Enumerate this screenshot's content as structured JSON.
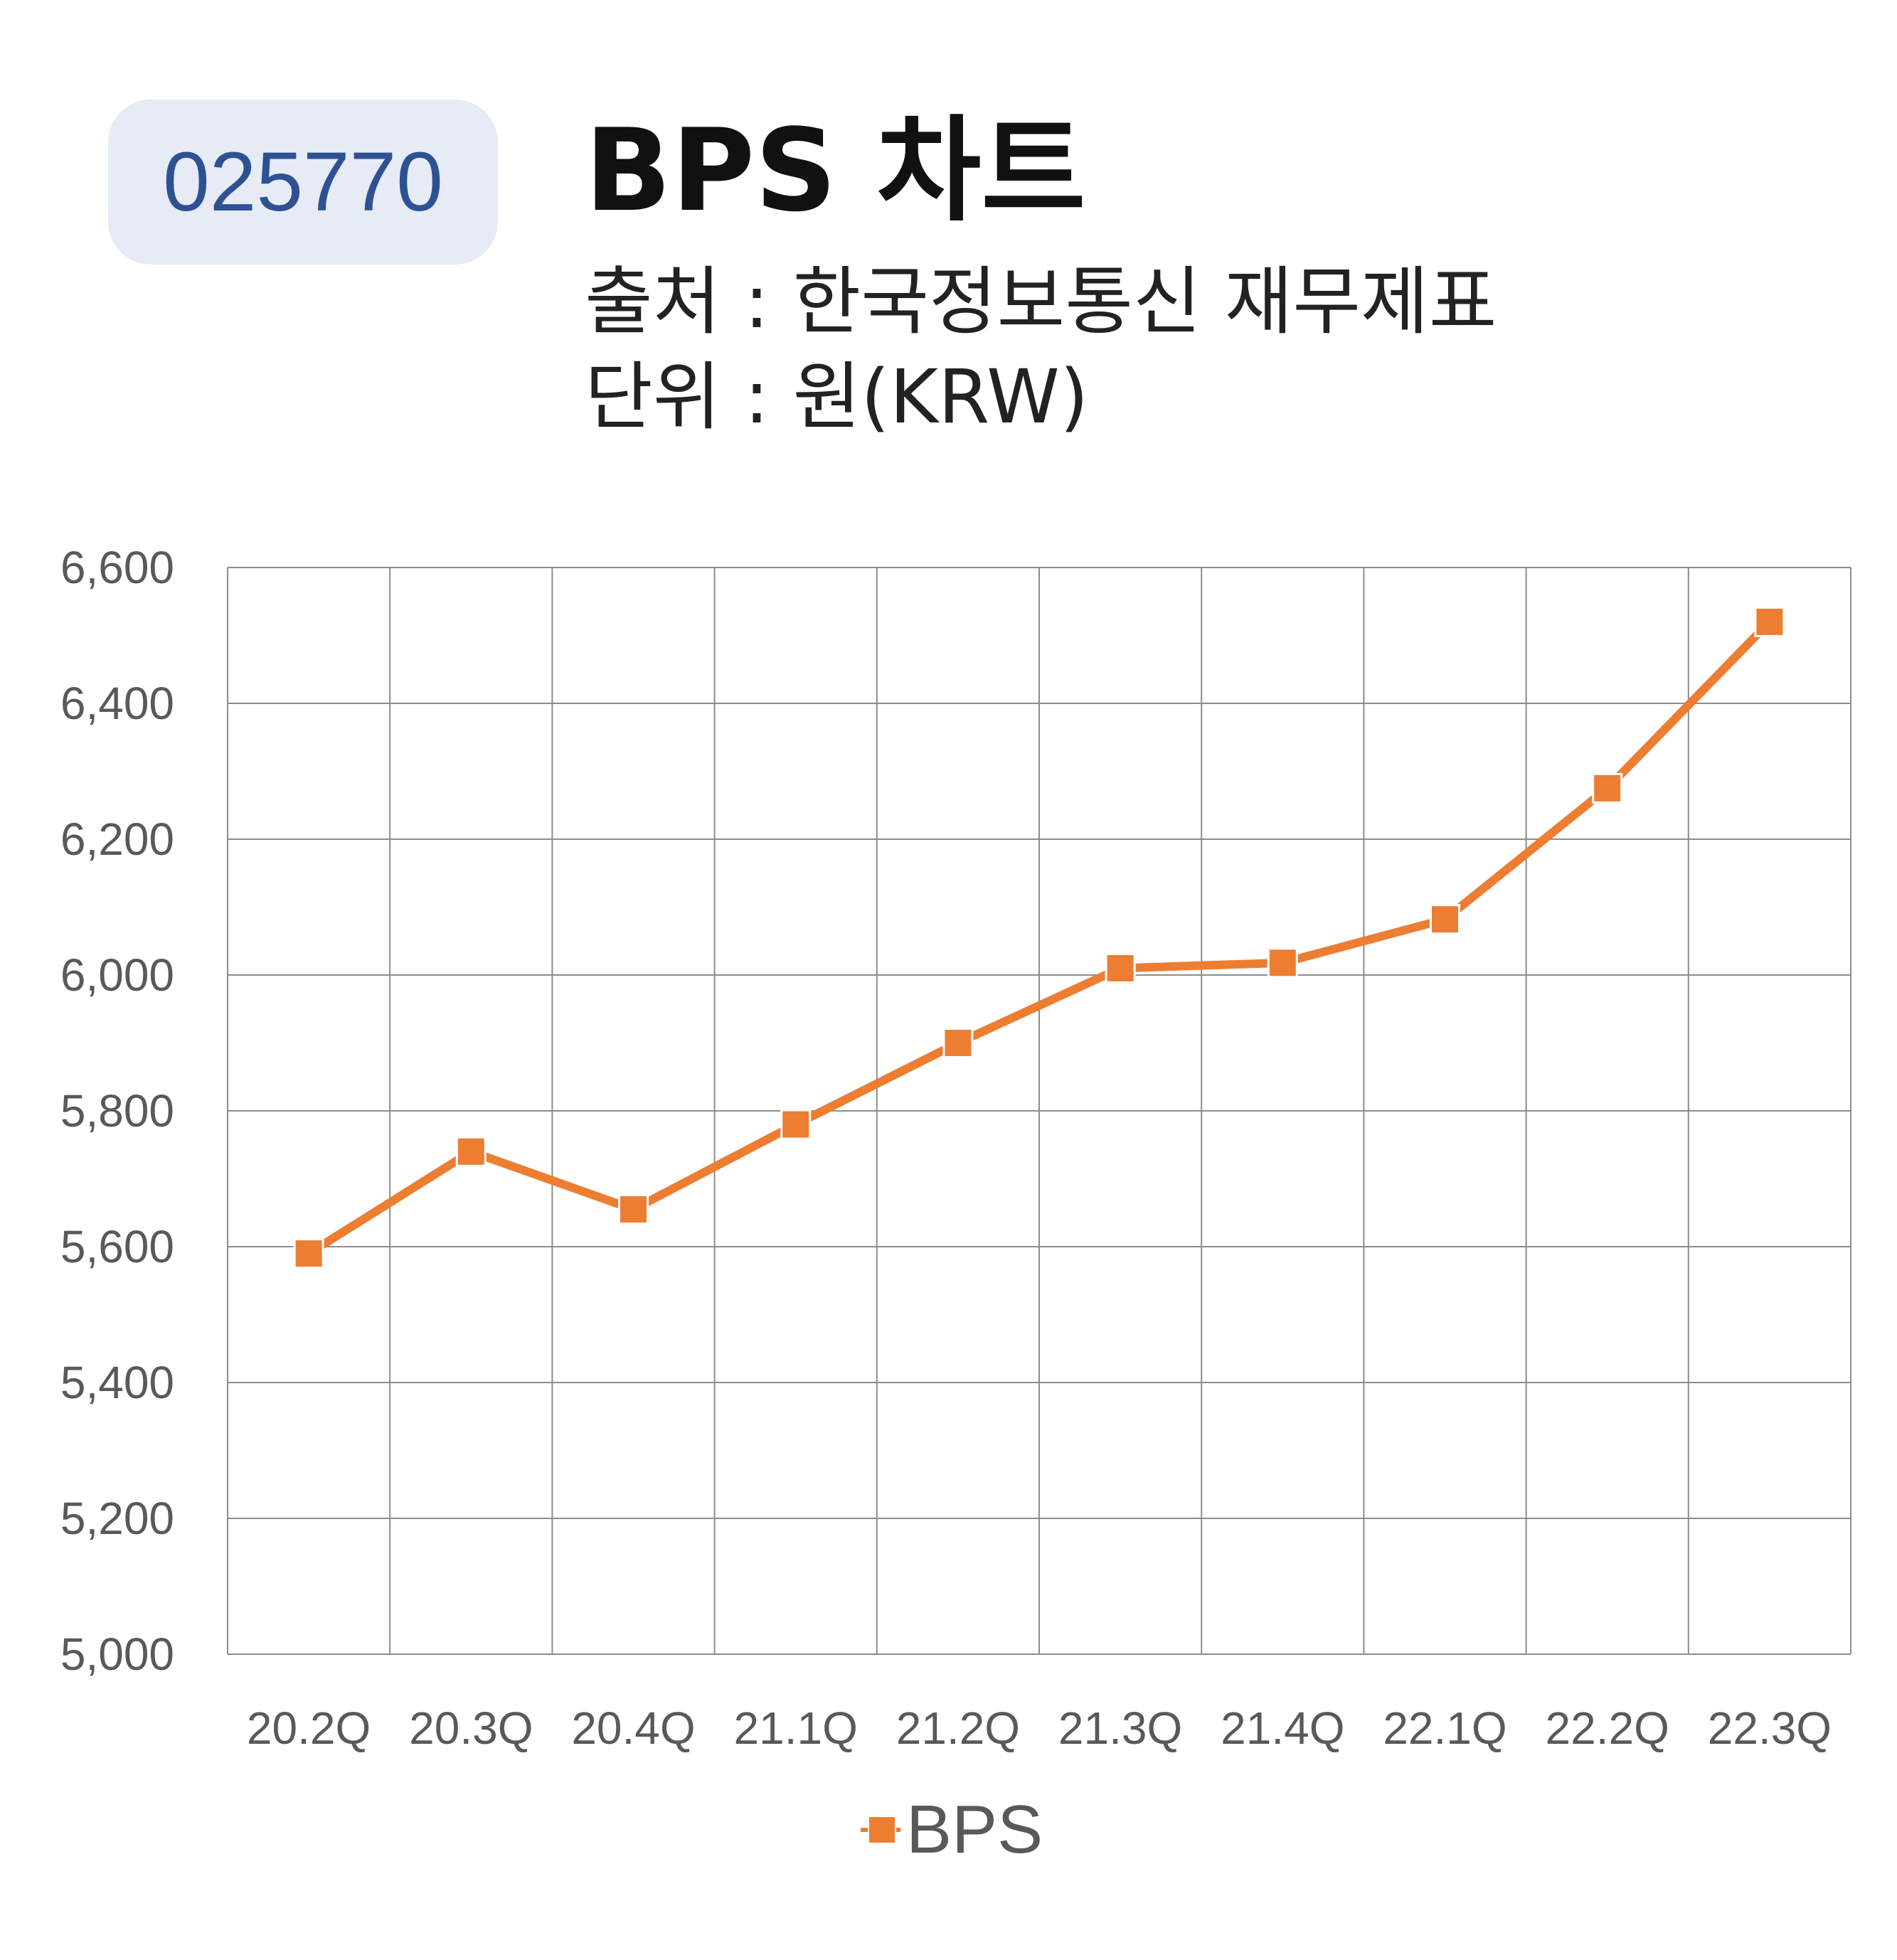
{
  "header": {
    "code": "025770",
    "title": "BPS 차트",
    "source": "출처 : 한국정보통신 재무제표",
    "unit": "단위 : 원(KRW)"
  },
  "chart_data": {
    "type": "line",
    "categories": [
      "20.2Q",
      "20.3Q",
      "20.4Q",
      "21.1Q",
      "21.2Q",
      "21.3Q",
      "21.4Q",
      "22.1Q",
      "22.2Q",
      "22.3Q"
    ],
    "series": [
      {
        "name": "BPS",
        "values": [
          5590,
          5740,
          5655,
          5780,
          5900,
          6010,
          6018,
          6082,
          6275,
          6520
        ],
        "color": "#ed7d31"
      }
    ],
    "ylim": [
      5000,
      6600
    ],
    "yticks": [
      5000,
      5200,
      5400,
      5600,
      5800,
      6000,
      6200,
      6400,
      6600
    ],
    "ytick_labels": [
      "5,000",
      "5,200",
      "5,400",
      "5,600",
      "5,800",
      "6,000",
      "6,200",
      "6,400",
      "6,600"
    ],
    "grid": true,
    "legend_position": "bottom"
  }
}
